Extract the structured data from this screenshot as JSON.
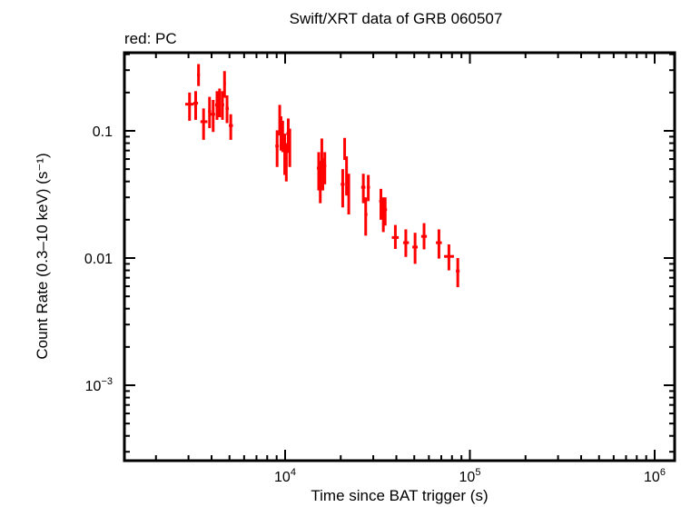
{
  "chart_data": {
    "type": "scatter",
    "title": "Swift/XRT data of GRB 060507",
    "subtitle": "red: PC",
    "xlabel": "Time since BAT trigger (s)",
    "ylabel": "Count Rate (0.3–10 keV) (s⁻¹)",
    "xscale": "log",
    "yscale": "log",
    "xlim": [
      1500,
      1600000
    ],
    "ylim": [
      0.00025,
      0.4
    ],
    "x_ticks": [
      {
        "value": 10000,
        "base": "10",
        "exp": "4"
      },
      {
        "value": 100000,
        "base": "10",
        "exp": "5"
      },
      {
        "value": 1000000,
        "base": "10",
        "exp": "6"
      }
    ],
    "y_ticks": [
      {
        "value": 0.1,
        "label": "0.1"
      },
      {
        "value": 0.01,
        "label": "0.01"
      },
      {
        "value": 0.001,
        "base": "10",
        "exp": "−3"
      }
    ],
    "grid": false,
    "legend": "none",
    "series": [
      {
        "name": "PC",
        "color": "#ff0000",
        "points": [
          {
            "t": 3040,
            "t_lo": 2880,
            "t_hi": 3200,
            "rate": 0.162,
            "lo": 0.12,
            "hi": 0.2
          },
          {
            "t": 3280,
            "t_lo": 3190,
            "t_hi": 3380,
            "rate": 0.165,
            "lo": 0.122,
            "hi": 0.205
          },
          {
            "t": 3400,
            "t_lo": 3340,
            "t_hi": 3460,
            "rate": 0.275,
            "lo": 0.225,
            "hi": 0.335
          },
          {
            "t": 3620,
            "t_lo": 3480,
            "t_hi": 3800,
            "rate": 0.118,
            "lo": 0.085,
            "hi": 0.15
          },
          {
            "t": 3900,
            "t_lo": 3830,
            "t_hi": 3980,
            "rate": 0.142,
            "lo": 0.105,
            "hi": 0.185
          },
          {
            "t": 4080,
            "t_lo": 3950,
            "t_hi": 4180,
            "rate": 0.135,
            "lo": 0.098,
            "hi": 0.175
          },
          {
            "t": 4280,
            "t_lo": 4180,
            "t_hi": 4380,
            "rate": 0.16,
            "lo": 0.122,
            "hi": 0.205
          },
          {
            "t": 4420,
            "t_lo": 4380,
            "t_hi": 4470,
            "rate": 0.18,
            "lo": 0.128,
            "hi": 0.215
          },
          {
            "t": 4580,
            "t_lo": 4500,
            "t_hi": 4680,
            "rate": 0.16,
            "lo": 0.122,
            "hi": 0.205
          },
          {
            "t": 4700,
            "t_lo": 4640,
            "t_hi": 4780,
            "rate": 0.235,
            "lo": 0.182,
            "hi": 0.295
          },
          {
            "t": 4850,
            "t_lo": 4760,
            "t_hi": 4960,
            "rate": 0.15,
            "lo": 0.115,
            "hi": 0.19
          },
          {
            "t": 5080,
            "t_lo": 4960,
            "t_hi": 5220,
            "rate": 0.11,
            "lo": 0.085,
            "hi": 0.135
          },
          {
            "t": 9050,
            "t_lo": 8850,
            "t_hi": 9250,
            "rate": 0.076,
            "lo": 0.052,
            "hi": 0.101
          },
          {
            "t": 9350,
            "t_lo": 9250,
            "t_hi": 9450,
            "rate": 0.125,
            "lo": 0.092,
            "hi": 0.16
          },
          {
            "t": 9500,
            "t_lo": 9430,
            "t_hi": 9570,
            "rate": 0.1,
            "lo": 0.07,
            "hi": 0.13
          },
          {
            "t": 9700,
            "t_lo": 9600,
            "t_hi": 9800,
            "rate": 0.093,
            "lo": 0.068,
            "hi": 0.12
          },
          {
            "t": 9950,
            "t_lo": 9850,
            "t_hi": 10050,
            "rate": 0.068,
            "lo": 0.045,
            "hi": 0.095
          },
          {
            "t": 10150,
            "t_lo": 10050,
            "t_hi": 10250,
            "rate": 0.06,
            "lo": 0.04,
            "hi": 0.08
          },
          {
            "t": 10400,
            "t_lo": 10150,
            "t_hi": 10700,
            "rate": 0.095,
            "lo": 0.067,
            "hi": 0.125
          },
          {
            "t": 10600,
            "t_lo": 10480,
            "t_hi": 10720,
            "rate": 0.078,
            "lo": 0.052,
            "hi": 0.104
          },
          {
            "t": 15200,
            "t_lo": 14850,
            "t_hi": 15500,
            "rate": 0.051,
            "lo": 0.034,
            "hi": 0.068
          },
          {
            "t": 15500,
            "t_lo": 15350,
            "t_hi": 15650,
            "rate": 0.04,
            "lo": 0.027,
            "hi": 0.058
          },
          {
            "t": 15800,
            "t_lo": 15650,
            "t_hi": 15950,
            "rate": 0.07,
            "lo": 0.052,
            "hi": 0.087
          },
          {
            "t": 16000,
            "t_lo": 15900,
            "t_hi": 16100,
            "rate": 0.047,
            "lo": 0.034,
            "hi": 0.061
          },
          {
            "t": 16400,
            "t_lo": 16200,
            "t_hi": 16700,
            "rate": 0.053,
            "lo": 0.038,
            "hi": 0.068
          },
          {
            "t": 20500,
            "t_lo": 20000,
            "t_hi": 21000,
            "rate": 0.038,
            "lo": 0.025,
            "hi": 0.05
          },
          {
            "t": 21000,
            "t_lo": 20800,
            "t_hi": 21200,
            "rate": 0.075,
            "lo": 0.059,
            "hi": 0.088
          },
          {
            "t": 21500,
            "t_lo": 21250,
            "t_hi": 21750,
            "rate": 0.047,
            "lo": 0.031,
            "hi": 0.063
          },
          {
            "t": 22100,
            "t_lo": 21800,
            "t_hi": 22400,
            "rate": 0.034,
            "lo": 0.022,
            "hi": 0.046
          },
          {
            "t": 26500,
            "t_lo": 25800,
            "t_hi": 27200,
            "rate": 0.036,
            "lo": 0.027,
            "hi": 0.046
          },
          {
            "t": 27300,
            "t_lo": 26900,
            "t_hi": 27900,
            "rate": 0.022,
            "lo": 0.015,
            "hi": 0.03
          },
          {
            "t": 28200,
            "t_lo": 27700,
            "t_hi": 28800,
            "rate": 0.036,
            "lo": 0.028,
            "hi": 0.045
          },
          {
            "t": 33000,
            "t_lo": 32300,
            "t_hi": 33700,
            "rate": 0.028,
            "lo": 0.02,
            "hi": 0.035
          },
          {
            "t": 34000,
            "t_lo": 33600,
            "t_hi": 34500,
            "rate": 0.022,
            "lo": 0.016,
            "hi": 0.03
          },
          {
            "t": 34800,
            "t_lo": 34000,
            "t_hi": 35600,
            "rate": 0.024,
            "lo": 0.018,
            "hi": 0.03
          },
          {
            "t": 39500,
            "t_lo": 37800,
            "t_hi": 41200,
            "rate": 0.0145,
            "lo": 0.0118,
            "hi": 0.0182
          },
          {
            "t": 45000,
            "t_lo": 43500,
            "t_hi": 46800,
            "rate": 0.0132,
            "lo": 0.0102,
            "hi": 0.0168
          },
          {
            "t": 50500,
            "t_lo": 48800,
            "t_hi": 52200,
            "rate": 0.0122,
            "lo": 0.009,
            "hi": 0.0158
          },
          {
            "t": 56500,
            "t_lo": 54500,
            "t_hi": 58500,
            "rate": 0.0148,
            "lo": 0.0117,
            "hi": 0.0188
          },
          {
            "t": 68000,
            "t_lo": 65500,
            "t_hi": 70500,
            "rate": 0.0132,
            "lo": 0.0099,
            "hi": 0.0168
          },
          {
            "t": 77000,
            "t_lo": 72500,
            "t_hi": 82000,
            "rate": 0.0103,
            "lo": 0.008,
            "hi": 0.0128
          },
          {
            "t": 86000,
            "t_lo": 84000,
            "t_hi": 88000,
            "rate": 0.0079,
            "lo": 0.0059,
            "hi": 0.01
          }
        ]
      }
    ]
  }
}
